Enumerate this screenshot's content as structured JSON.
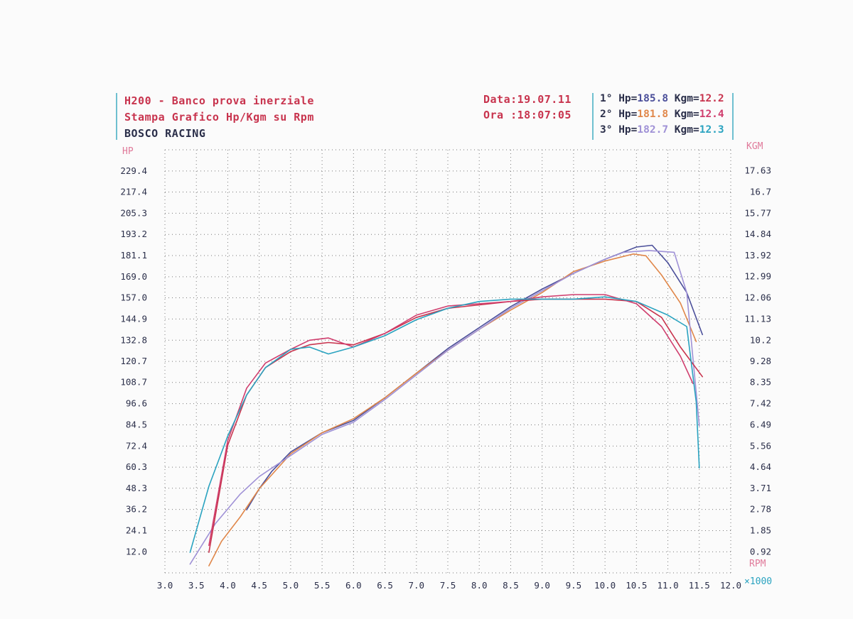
{
  "header": {
    "title": "H200 - Banco prova inerziale",
    "subtitle": "Stampa Grafico Hp/Kgm su Rpm",
    "company": "BOSCO RACING",
    "date_label": "Data:",
    "date_value": "19.07.11",
    "time_label": "Ora :",
    "time_value": "18:07:05"
  },
  "runs": [
    {
      "label": "1°",
      "hp_label": "Hp=",
      "hp": "185.8",
      "kgm_label": "Kgm=",
      "kgm": "12.2",
      "color": "#4b4f9a"
    },
    {
      "label": "2°",
      "hp_label": "Hp=",
      "hp": "181.8",
      "kgm_label": "Kgm=",
      "kgm": "12.4",
      "color": "#e0874a"
    },
    {
      "label": "3°",
      "hp_label": "Hp=",
      "hp": "182.7",
      "kgm_label": "Kgm=",
      "kgm": "12.3",
      "color": "#9f91d6"
    }
  ],
  "colors": {
    "title": "#c8344e",
    "label_dark": "#2b2f4a",
    "axis_pink": "#e07a9a",
    "run1_power": "#4b4f9a",
    "run1_torque": "#c8344e",
    "run2_power": "#e0874a",
    "run2_torque": "#d03e6e",
    "run3_power": "#9f91d6",
    "run3_torque": "#2aa3c0",
    "grid": "#7a7a7a",
    "unit_x": "#2aa3c0"
  },
  "chart_data": {
    "type": "line",
    "left_axis_label": "HP",
    "right_axis_label": "KGM",
    "x_axis_label": "RPM",
    "x_unit": "×1000",
    "x_ticks": [
      "3.0",
      "3.5",
      "4.0",
      "4.5",
      "5.0",
      "5.5",
      "6.0",
      "6.5",
      "7.0",
      "7.5",
      "8.0",
      "8.5",
      "9.0",
      "9.5",
      "10.0",
      "10.5",
      "11.0",
      "11.5",
      "12.0"
    ],
    "left_ticks": [
      "229.4",
      "217.4",
      "205.3",
      "193.2",
      "181.1",
      "169.0",
      "157.0",
      "144.9",
      "132.8",
      "120.7",
      "108.7",
      "96.6",
      "84.5",
      "72.4",
      "60.3",
      "48.3",
      "36.2",
      "24.1",
      "12.0"
    ],
    "right_ticks": [
      "17.63",
      "16.7",
      "15.77",
      "14.84",
      "13.92",
      "12.99",
      "12.06",
      "11.13",
      "10.2",
      "9.28",
      "8.35",
      "7.42",
      "6.49",
      "5.56",
      "4.64",
      "3.71",
      "2.78",
      "1.85",
      "0.92"
    ],
    "xlim": [
      3.0,
      12.0
    ],
    "hp_lim": [
      0,
      241.5
    ],
    "kgm_lim": [
      0,
      18.55
    ],
    "grid": true,
    "series": [
      {
        "name": "1° Hp",
        "axis": "hp",
        "color_key": "run1_power",
        "x": [
          4.3,
          4.5,
          4.7,
          5.0,
          5.5,
          6.0,
          6.5,
          7.0,
          7.5,
          8.0,
          8.5,
          9.0,
          9.5,
          10.0,
          10.5,
          10.75,
          11.0,
          11.3,
          11.55
        ],
        "y": [
          36,
          48,
          58,
          69,
          80,
          87,
          100,
          114,
          128,
          140,
          152,
          162,
          171,
          179,
          186,
          187,
          177,
          160,
          136
        ]
      },
      {
        "name": "2° Hp",
        "axis": "hp",
        "color_key": "run2_power",
        "x": [
          3.7,
          3.9,
          4.2,
          4.5,
          5.0,
          5.5,
          6.0,
          6.5,
          7.0,
          7.5,
          8.0,
          8.5,
          9.0,
          9.5,
          10.0,
          10.45,
          10.65,
          10.9,
          11.2,
          11.45
        ],
        "y": [
          4,
          18,
          32,
          48,
          68,
          80,
          88,
          100,
          114,
          127,
          139,
          150,
          160,
          172,
          178,
          182,
          181,
          170,
          154,
          132
        ]
      },
      {
        "name": "3° Hp",
        "axis": "hp",
        "color_key": "run3_power",
        "x": [
          3.4,
          3.8,
          4.2,
          4.5,
          5.0,
          5.5,
          6.0,
          6.5,
          7.0,
          7.5,
          8.0,
          8.5,
          9.0,
          9.5,
          10.0,
          10.3,
          10.7,
          11.1,
          11.3,
          11.5
        ],
        "y": [
          5,
          28,
          45,
          55,
          67,
          79,
          86,
          99,
          113,
          127,
          139,
          151,
          161,
          171,
          179,
          183,
          184,
          183,
          160,
          84
        ]
      },
      {
        "name": "1° Kgm",
        "axis": "kgm",
        "color_key": "run1_torque",
        "x": [
          3.7,
          4.0,
          4.3,
          4.6,
          5.0,
          5.3,
          5.6,
          6.0,
          6.5,
          7.0,
          7.5,
          8.0,
          8.5,
          9.0,
          9.5,
          10.0,
          10.5,
          10.9,
          11.2,
          11.55
        ],
        "y": [
          0.9,
          5.6,
          7.8,
          9.0,
          9.7,
          10.0,
          10.1,
          10.0,
          10.5,
          11.2,
          11.6,
          11.75,
          11.9,
          12.0,
          12.0,
          12.0,
          11.9,
          11.2,
          9.9,
          8.6
        ]
      },
      {
        "name": "2° Kgm",
        "axis": "kgm",
        "color_key": "run2_torque",
        "x": [
          3.7,
          4.0,
          4.3,
          4.6,
          5.0,
          5.3,
          5.6,
          6.0,
          6.5,
          7.0,
          7.5,
          8.0,
          8.5,
          9.0,
          9.5,
          10.0,
          10.5,
          10.9,
          11.2,
          11.4
        ],
        "y": [
          1.2,
          5.8,
          8.1,
          9.2,
          9.8,
          10.2,
          10.3,
          9.9,
          10.5,
          11.3,
          11.7,
          11.8,
          11.9,
          12.1,
          12.2,
          12.2,
          11.8,
          10.8,
          9.5,
          8.3
        ]
      },
      {
        "name": "3° Kgm",
        "axis": "kgm",
        "color_key": "run3_torque",
        "x": [
          3.4,
          3.7,
          4.0,
          4.3,
          4.6,
          5.0,
          5.3,
          5.6,
          6.0,
          6.5,
          7.0,
          7.5,
          8.0,
          8.5,
          9.0,
          9.5,
          10.0,
          10.5,
          11.0,
          11.3,
          11.45,
          11.5
        ],
        "y": [
          0.9,
          3.8,
          6.0,
          7.8,
          9.0,
          9.8,
          9.9,
          9.6,
          9.9,
          10.4,
          11.1,
          11.6,
          11.9,
          12.0,
          12.0,
          12.0,
          12.1,
          11.9,
          11.3,
          10.8,
          7.5,
          4.6
        ]
      }
    ]
  }
}
